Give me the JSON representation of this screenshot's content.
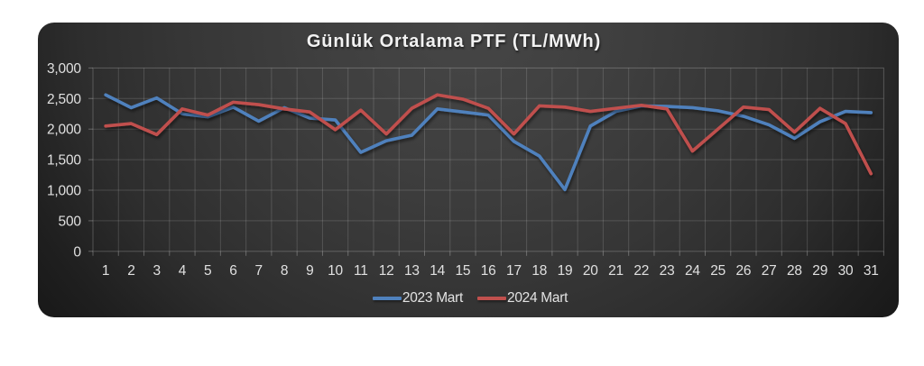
{
  "chart_data": {
    "type": "line",
    "title": "Günlük Ortalama PTF (TL/MWh)",
    "x": [
      1,
      2,
      3,
      4,
      5,
      6,
      7,
      8,
      9,
      10,
      11,
      12,
      13,
      14,
      15,
      16,
      17,
      18,
      19,
      20,
      21,
      22,
      23,
      24,
      25,
      26,
      27,
      28,
      29,
      30,
      31
    ],
    "x_tick_labels": [
      "1",
      "2",
      "3",
      "4",
      "5",
      "6",
      "7",
      "8",
      "9",
      "10",
      "11",
      "12",
      "13",
      "14",
      "15",
      "16",
      "17",
      "18",
      "19",
      "20",
      "21",
      "22",
      "23",
      "24",
      "25",
      "26",
      "27",
      "28",
      "29",
      "30",
      "31"
    ],
    "series": [
      {
        "name": "2023 Mart",
        "color": "#4f81bd",
        "values": [
          2560,
          2350,
          2510,
          2250,
          2200,
          2360,
          2130,
          2350,
          2180,
          2150,
          1620,
          1810,
          1900,
          2330,
          2280,
          2230,
          1800,
          1560,
          1010,
          2050,
          2290,
          2380,
          2370,
          2350,
          2300,
          2210,
          2070,
          1850,
          2120,
          2290,
          2270
        ]
      },
      {
        "name": "2024 Mart",
        "color": "#c0504d",
        "values": [
          2050,
          2090,
          1910,
          2330,
          2230,
          2440,
          2400,
          2330,
          2280,
          1990,
          2310,
          1920,
          2340,
          2560,
          2490,
          2340,
          1920,
          2380,
          2360,
          2290,
          2340,
          2390,
          2330,
          1640,
          2000,
          2360,
          2320,
          1950,
          2340,
          2090,
          1270
        ]
      }
    ],
    "ylim": [
      0,
      3000
    ],
    "ytick_step": 500,
    "ytick_labels": [
      "0",
      "500",
      "1,000",
      "1,500",
      "2,000",
      "2,500",
      "3,000"
    ],
    "xlabel": "",
    "ylabel": "",
    "grid": true,
    "legend_position": "bottom"
  },
  "style": {
    "gridline_color": "rgba(255,255,255,0.15)",
    "plot_border_color": "rgba(255,255,255,0.22)",
    "tick_color": "rgba(255,255,255,0.28)",
    "axis_text_color": "#dcdcdc",
    "title_color": "#f2f2f2"
  }
}
